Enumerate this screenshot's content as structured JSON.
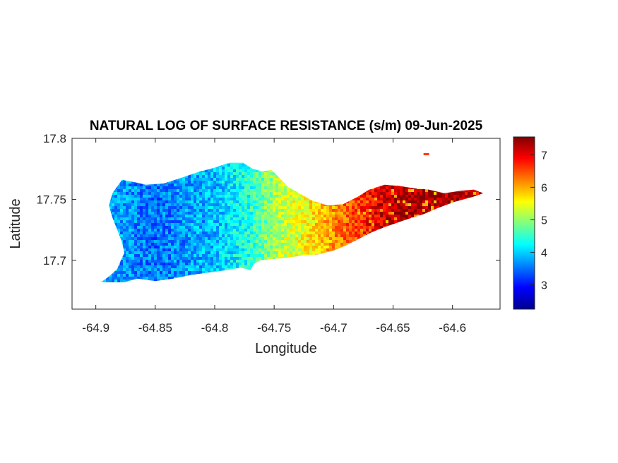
{
  "chart_data": {
    "type": "heatmap",
    "title": "NATURAL LOG OF SURFACE RESISTANCE (s/m) 09-Jun-2025",
    "xlabel": "Longitude",
    "ylabel": "Latitude",
    "xlim": [
      -64.92,
      -64.56
    ],
    "ylim": [
      17.66,
      17.8
    ],
    "xticks": [
      -64.9,
      -64.85,
      -64.8,
      -64.75,
      -64.7,
      -64.65,
      -64.6
    ],
    "xtick_labels": [
      "-64.9",
      "-64.85",
      "-64.8",
      "-64.75",
      "-64.7",
      "-64.65",
      "-64.6"
    ],
    "yticks": [
      17.8,
      17.75,
      17.7
    ],
    "ytick_labels": [
      "17.8",
      "17.75",
      "17.7"
    ],
    "colormap": "jet",
    "clim": [
      2.25,
      7.55
    ],
    "colorbar_ticks": [
      3,
      4,
      5,
      6,
      7
    ],
    "colorbar_tick_labels": [
      "3",
      "4",
      "5",
      "6",
      "7"
    ],
    "grid": false,
    "region_outline_lonlat": [
      [
        -64.899,
        17.68
      ],
      [
        -64.89,
        17.686
      ],
      [
        -64.882,
        17.693
      ],
      [
        -64.879,
        17.7
      ],
      [
        -64.876,
        17.706
      ],
      [
        -64.878,
        17.715
      ],
      [
        -64.882,
        17.725
      ],
      [
        -64.886,
        17.735
      ],
      [
        -64.889,
        17.745
      ],
      [
        -64.886,
        17.755
      ],
      [
        -64.878,
        17.766
      ],
      [
        -64.867,
        17.764
      ],
      [
        -64.858,
        17.762
      ],
      [
        -64.843,
        17.763
      ],
      [
        -64.83,
        17.767
      ],
      [
        -64.815,
        17.772
      ],
      [
        -64.8,
        17.776
      ],
      [
        -64.788,
        17.78
      ],
      [
        -64.776,
        17.78
      ],
      [
        -64.768,
        17.775
      ],
      [
        -64.76,
        17.773
      ],
      [
        -64.752,
        17.774
      ],
      [
        -64.745,
        17.767
      ],
      [
        -64.738,
        17.76
      ],
      [
        -64.729,
        17.755
      ],
      [
        -64.718,
        17.749
      ],
      [
        -64.705,
        17.745
      ],
      [
        -64.692,
        17.746
      ],
      [
        -64.68,
        17.752
      ],
      [
        -64.67,
        17.758
      ],
      [
        -64.657,
        17.762
      ],
      [
        -64.645,
        17.761
      ],
      [
        -64.632,
        17.759
      ],
      [
        -64.62,
        17.758
      ],
      [
        -64.607,
        17.755
      ],
      [
        -64.593,
        17.757
      ],
      [
        -64.582,
        17.758
      ],
      [
        -64.574,
        17.755
      ],
      [
        -64.583,
        17.752
      ],
      [
        -64.598,
        17.748
      ],
      [
        -64.612,
        17.743
      ],
      [
        -64.624,
        17.738
      ],
      [
        -64.64,
        17.733
      ],
      [
        -64.655,
        17.728
      ],
      [
        -64.668,
        17.723
      ],
      [
        -64.678,
        17.718
      ],
      [
        -64.69,
        17.712
      ],
      [
        -64.7,
        17.708
      ],
      [
        -64.712,
        17.705
      ],
      [
        -64.726,
        17.704
      ],
      [
        -64.739,
        17.702
      ],
      [
        -64.752,
        17.701
      ],
      [
        -64.762,
        17.7
      ],
      [
        -64.767,
        17.697
      ],
      [
        -64.77,
        17.692
      ],
      [
        -64.778,
        17.694
      ],
      [
        -64.79,
        17.692
      ],
      [
        -64.805,
        17.69
      ],
      [
        -64.82,
        17.688
      ],
      [
        -64.835,
        17.685
      ],
      [
        -64.85,
        17.683
      ],
      [
        -64.865,
        17.685
      ],
      [
        -64.88,
        17.681
      ],
      [
        -64.899,
        17.68
      ]
    ],
    "value_gradient_by_longitude": [
      {
        "lon": -64.9,
        "value": 3.9
      },
      {
        "lon": -64.85,
        "value": 3.5
      },
      {
        "lon": -64.8,
        "value": 3.9
      },
      {
        "lon": -64.77,
        "value": 4.4
      },
      {
        "lon": -64.75,
        "value": 5.1
      },
      {
        "lon": -64.72,
        "value": 5.6
      },
      {
        "lon": -64.7,
        "value": 6.1
      },
      {
        "lon": -64.68,
        "value": 6.6
      },
      {
        "lon": -64.66,
        "value": 7.1
      },
      {
        "lon": -64.64,
        "value": 7.4
      },
      {
        "lon": -64.6,
        "value": 7.3
      },
      {
        "lon": -64.57,
        "value": 7.0
      }
    ],
    "small_patch": {
      "lon": -64.622,
      "lat": 17.787,
      "value": 6.6
    }
  }
}
